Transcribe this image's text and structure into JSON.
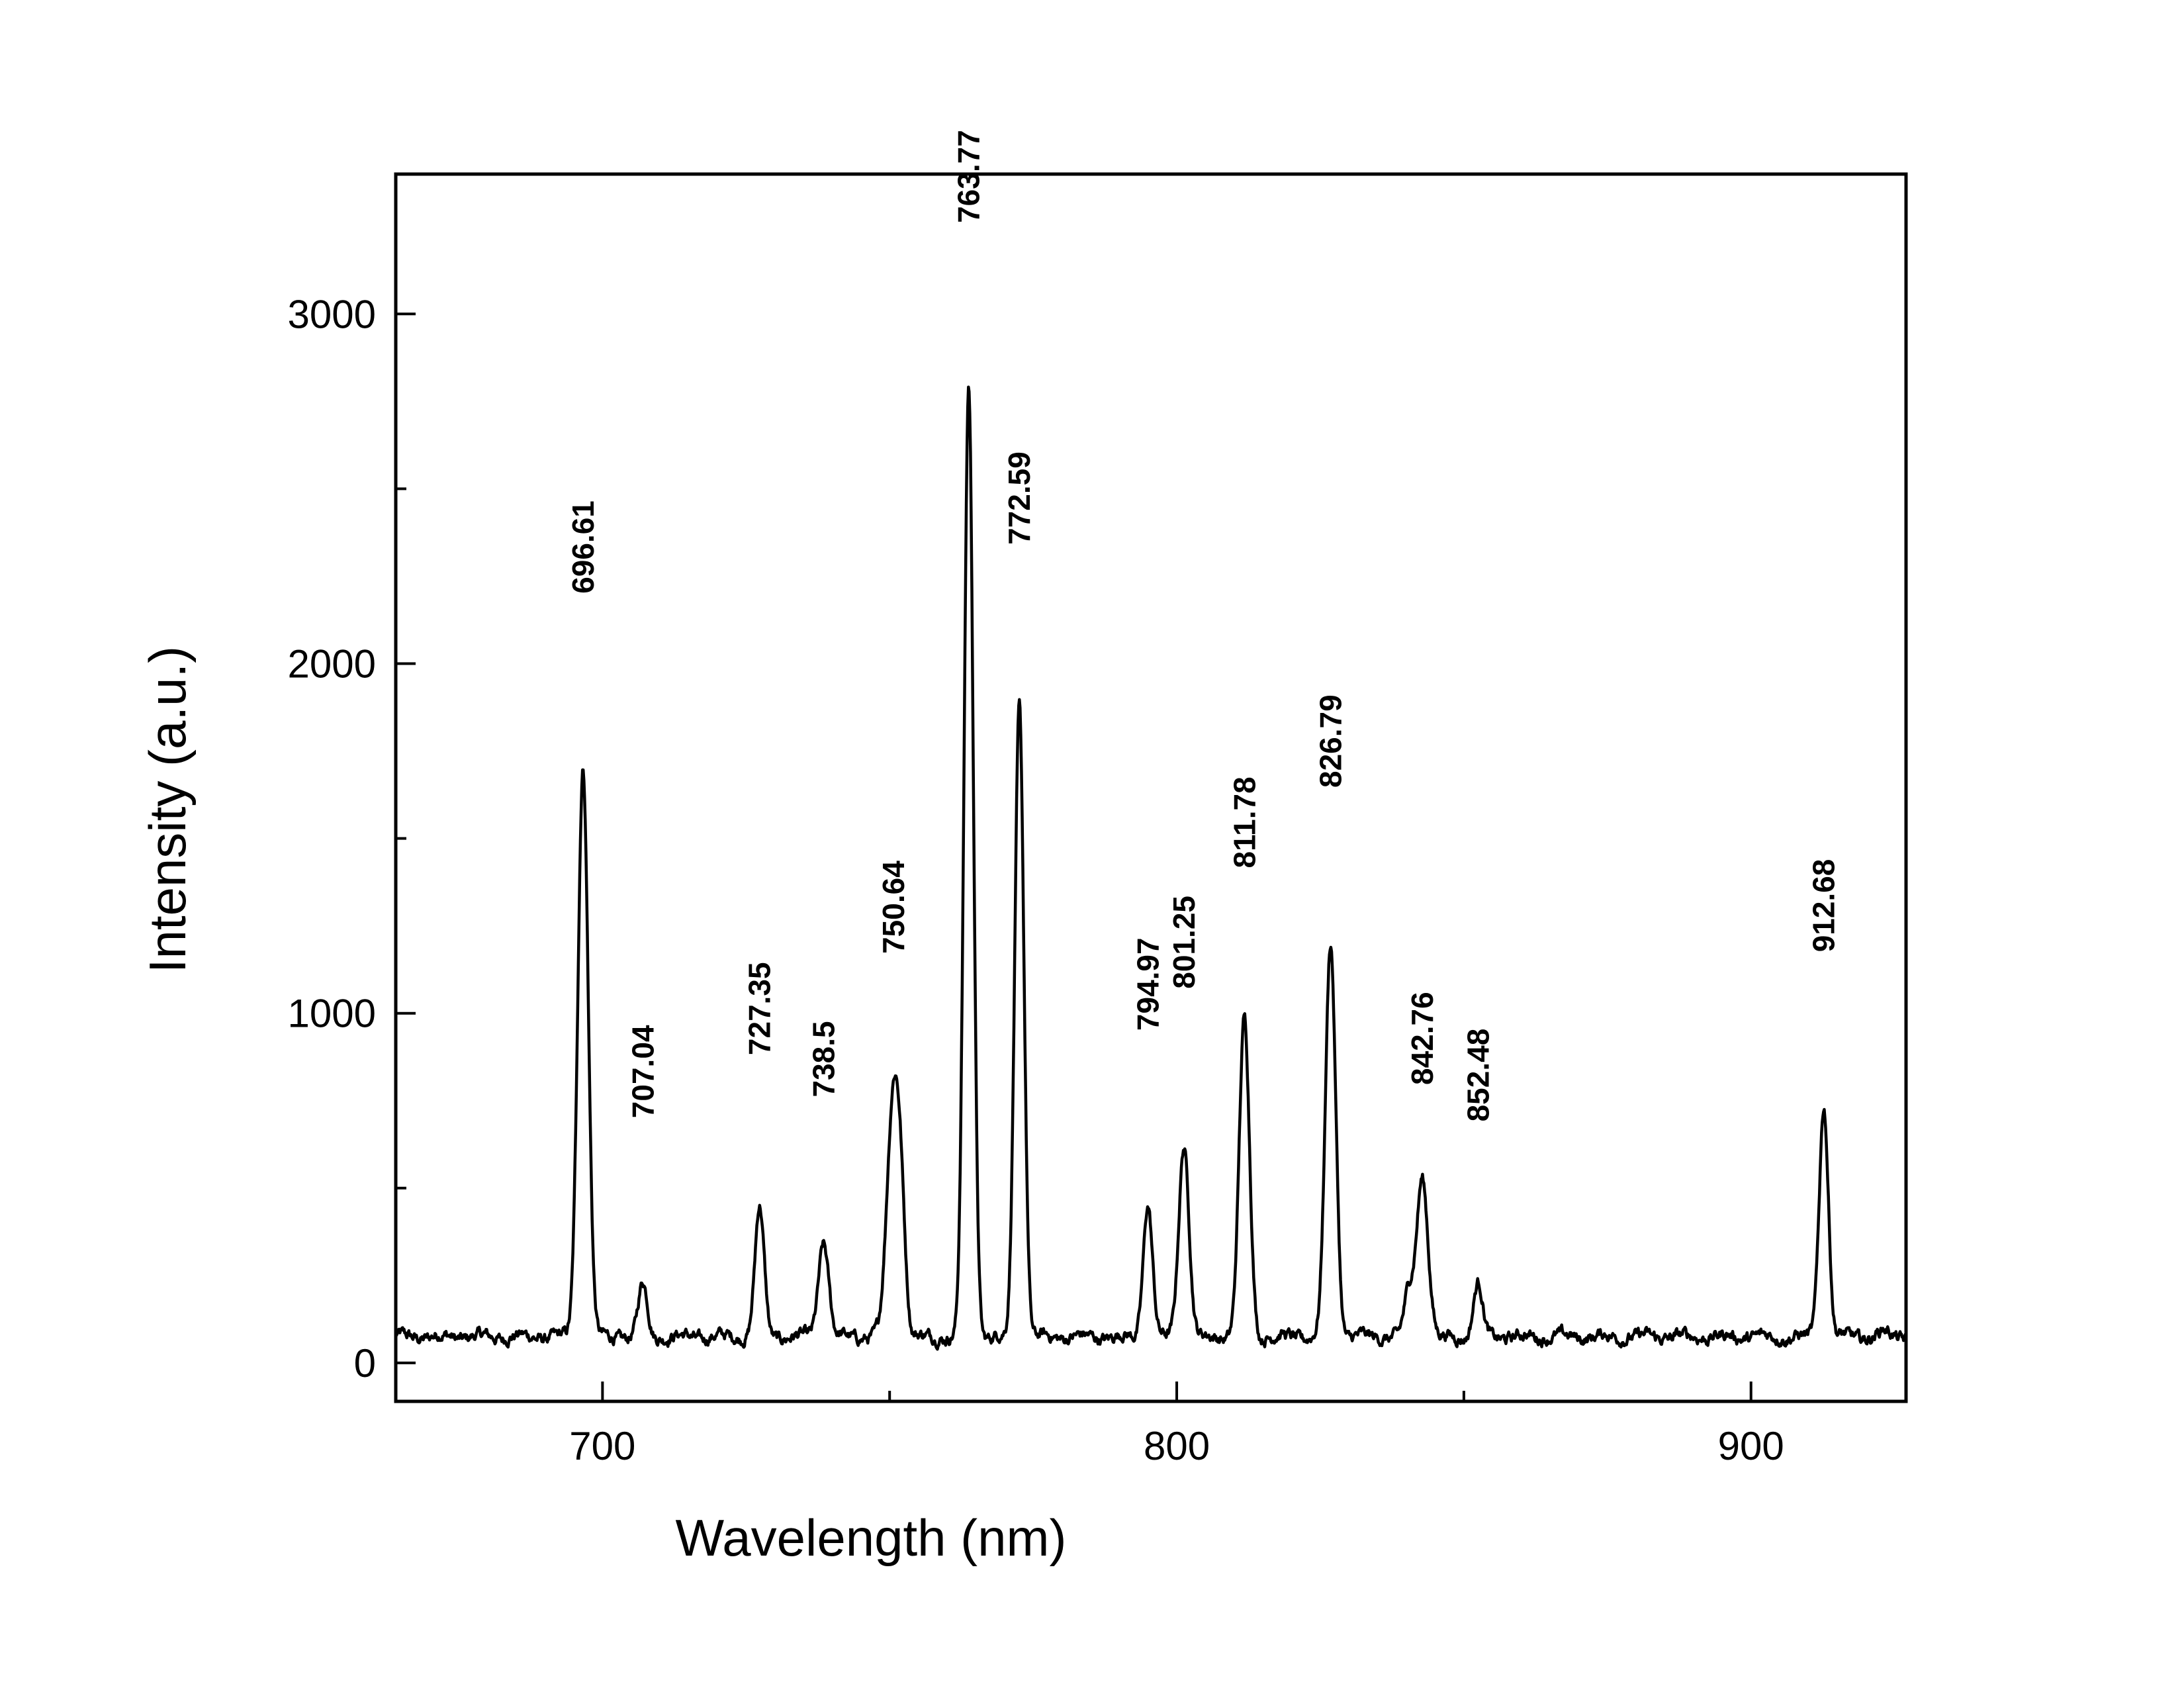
{
  "chart_data": {
    "type": "line",
    "title": "",
    "xlabel": "Wavelength (nm)",
    "ylabel": "Intensity (a.u.)",
    "xlim": [
      664,
      927
    ],
    "ylim": [
      -110,
      3400
    ],
    "xticks": [
      700,
      800,
      900
    ],
    "yticks": [
      0,
      1000,
      2000,
      3000
    ],
    "grid": false,
    "legend": "none",
    "colors": {
      "line": "#000000",
      "axes": "#000000"
    },
    "baseline": 75,
    "peaks": [
      {
        "label": "696.61",
        "x": 696.61,
        "y": 1710,
        "width": 0.9
      },
      {
        "label": "707.04",
        "x": 707.04,
        "y": 225,
        "width": 0.8
      },
      {
        "label": "727.35",
        "x": 727.35,
        "y": 445,
        "width": 0.8
      },
      {
        "label": "738.5",
        "x": 738.5,
        "y": 345,
        "width": 0.9
      },
      {
        "label": "750.64",
        "x": 750.64,
        "y": 750,
        "width": 1.1
      },
      {
        "label": "763.77",
        "x": 763.77,
        "y": 2790,
        "width": 0.8
      },
      {
        "label": "772.59",
        "x": 772.59,
        "y": 1880,
        "width": 0.8
      },
      {
        "label": "794.97",
        "x": 794.97,
        "y": 455,
        "width": 0.8
      },
      {
        "label": "801.25",
        "x": 801.25,
        "y": 625,
        "width": 0.9
      },
      {
        "label": "811.78",
        "x": 811.78,
        "y": 980,
        "width": 0.9
      },
      {
        "label": "826.79",
        "x": 826.79,
        "y": 1195,
        "width": 0.9
      },
      {
        "label": "842.76",
        "x": 842.76,
        "y": 535,
        "width": 1.0
      },
      {
        "label": "852.48",
        "x": 852.48,
        "y": 225,
        "width": 0.8
      },
      {
        "label": "912.68",
        "x": 912.68,
        "y": 740,
        "width": 0.8
      }
    ],
    "minor_peaks": [
      {
        "x": 752.0,
        "y": 330,
        "width": 0.8
      },
      {
        "x": 840.4,
        "y": 195,
        "width": 0.8
      },
      {
        "x": 923.1,
        "y": 90,
        "width": 0.9
      }
    ],
    "peak_labels": [
      {
        "text": "696.61",
        "x": 696.61,
        "y": 2200
      },
      {
        "text": "707.04",
        "x": 707.04,
        "y": 700
      },
      {
        "text": "727.35",
        "x": 727.35,
        "y": 880
      },
      {
        "text": "738.5",
        "x": 738.5,
        "y": 760
      },
      {
        "text": "750.64",
        "x": 750.64,
        "y": 1170
      },
      {
        "text": "763.77",
        "x": 763.77,
        "y": 3260
      },
      {
        "text": "772.59",
        "x": 772.59,
        "y": 2340
      },
      {
        "text": "794.97",
        "x": 794.97,
        "y": 950
      },
      {
        "text": "801.25",
        "x": 801.25,
        "y": 1070
      },
      {
        "text": "811.78",
        "x": 811.78,
        "y": 1415
      },
      {
        "text": "826.79",
        "x": 826.79,
        "y": 1645
      },
      {
        "text": "842.76",
        "x": 842.76,
        "y": 795
      },
      {
        "text": "852.48",
        "x": 852.48,
        "y": 690
      },
      {
        "text": "912.68",
        "x": 912.68,
        "y": 1175
      }
    ]
  }
}
